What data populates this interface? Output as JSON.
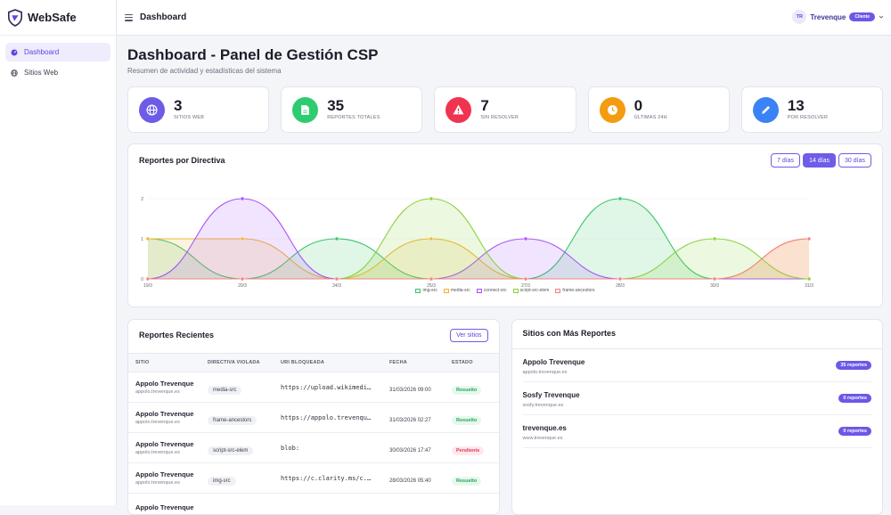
{
  "brand": {
    "name": "WebSafe"
  },
  "sidebar": {
    "items": [
      {
        "label": "Dashboard",
        "icon": "dashboard-icon",
        "active": true
      },
      {
        "label": "Sitios Web",
        "icon": "globe-icon",
        "active": false
      }
    ]
  },
  "topbar": {
    "title": "Dashboard",
    "user_initials": "TR",
    "user_name": "Trevenque",
    "role": "Cliente"
  },
  "page": {
    "title": "Dashboard - Panel de Gestión CSP",
    "subtitle": "Resumen de actividad y estadísticas del sistema"
  },
  "stats": [
    {
      "value": "3",
      "label": "Sitios web",
      "icon": "globe-icon",
      "color": "#6c5ce7"
    },
    {
      "value": "35",
      "label": "Reportes totales",
      "icon": "document-icon",
      "color": "#2ecc71"
    },
    {
      "value": "7",
      "label": "Sin resolver",
      "icon": "warning-icon",
      "color": "#f0334f"
    },
    {
      "value": "0",
      "label": "Últimas 24h",
      "icon": "clock-icon",
      "color": "#f39c12"
    },
    {
      "value": "13",
      "label": "Por resolver",
      "icon": "pencil-icon",
      "color": "#3b82f6"
    }
  ],
  "chart_card": {
    "title": "Reportes por Directiva",
    "ranges": [
      {
        "label": "7 días",
        "active": false
      },
      {
        "label": "14 días",
        "active": true
      },
      {
        "label": "30 días",
        "active": false
      }
    ]
  },
  "chart_data": {
    "type": "area",
    "categories": [
      "19/3",
      "20/3",
      "24/3",
      "25/3",
      "27/3",
      "28/3",
      "30/3",
      "31/3"
    ],
    "ylim": [
      0,
      2
    ],
    "yticks": [
      "0",
      "1",
      "2"
    ],
    "series": [
      {
        "name": "img-src",
        "color": "#3cc46b",
        "values": [
          1,
          0,
          1,
          0,
          0,
          2,
          0,
          0
        ]
      },
      {
        "name": "media-src",
        "color": "#f1b534",
        "values": [
          1,
          1,
          0,
          1,
          0,
          0,
          0,
          1
        ]
      },
      {
        "name": "connect-src",
        "color": "#a855f7",
        "values": [
          0,
          2,
          0,
          0,
          1,
          0,
          0,
          0
        ]
      },
      {
        "name": "script-src-elem",
        "color": "#8ad33e",
        "values": [
          0,
          0,
          0,
          2,
          0,
          0,
          1,
          0
        ]
      },
      {
        "name": "frame-ancestors",
        "color": "#f08585",
        "values": [
          0,
          0,
          0,
          0,
          0,
          0,
          0,
          1
        ]
      }
    ]
  },
  "recent": {
    "title": "Reportes Recientes",
    "button": "Ver sitios",
    "columns": [
      "Sitio",
      "Directiva violada",
      "URI bloqueada",
      "Fecha",
      "Estado"
    ],
    "rows": [
      {
        "site": "Appolo Trevenque",
        "domain": "appolo.trevenque.es",
        "directive": "media-src",
        "uri": "https://upload.wikimedia.org",
        "date": "31/03/2026 09:00",
        "status": "Resuelto",
        "ok": true
      },
      {
        "site": "Appolo Trevenque",
        "domain": "appolo.trevenque.es",
        "directive": "frame-ancestors",
        "uri": "https://appolo.trevenque.es",
        "date": "31/03/2026 02:27",
        "status": "Resuelto",
        "ok": true
      },
      {
        "site": "Appolo Trevenque",
        "domain": "appolo.trevenque.es",
        "directive": "script-src-elem",
        "uri": "blob:",
        "date": "30/03/2026 17:47",
        "status": "Pendiente",
        "ok": false
      },
      {
        "site": "Appolo Trevenque",
        "domain": "appolo.trevenque.es",
        "directive": "img-src",
        "uri": "https://c.clarity.ms/c.gif",
        "date": "28/03/2026 05:40",
        "status": "Resuelto",
        "ok": true
      },
      {
        "site": "Appolo Trevenque",
        "domain": "",
        "directive": "",
        "uri": "",
        "date": "",
        "status": "",
        "ok": true
      }
    ]
  },
  "top_sites": {
    "title": "Sitios con Más Reportes",
    "items": [
      {
        "name": "Appolo Trevenque",
        "domain": "appolo.trevenque.es",
        "badge": "35 reportes"
      },
      {
        "name": "Sosfy Trevenque",
        "domain": "sosfy.trevenque.es",
        "badge": "0 reportes"
      },
      {
        "name": "trevenque.es",
        "domain": "www.trevenque.es",
        "badge": "0 reportes"
      }
    ]
  }
}
